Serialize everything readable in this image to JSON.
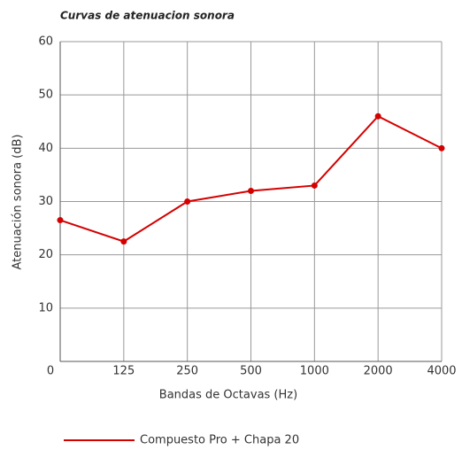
{
  "chart_data": {
    "type": "line",
    "title": "Curvas de atenuacion sonora",
    "x_label": "Bandas de Octavas (Hz)",
    "y_label": "Atenuación sonora (dB)",
    "categories": [
      "0",
      "125",
      "250",
      "500",
      "1000",
      "2000",
      "4000"
    ],
    "series": [
      {
        "name": "Compuesto Pro + Chapa 20",
        "color": "#d40000",
        "values": [
          26.5,
          22.5,
          30,
          32,
          33,
          46,
          40
        ]
      }
    ],
    "ylim": [
      0,
      60
    ],
    "yticks": [
      10,
      20,
      30,
      40,
      50,
      60
    ],
    "grid": true
  }
}
